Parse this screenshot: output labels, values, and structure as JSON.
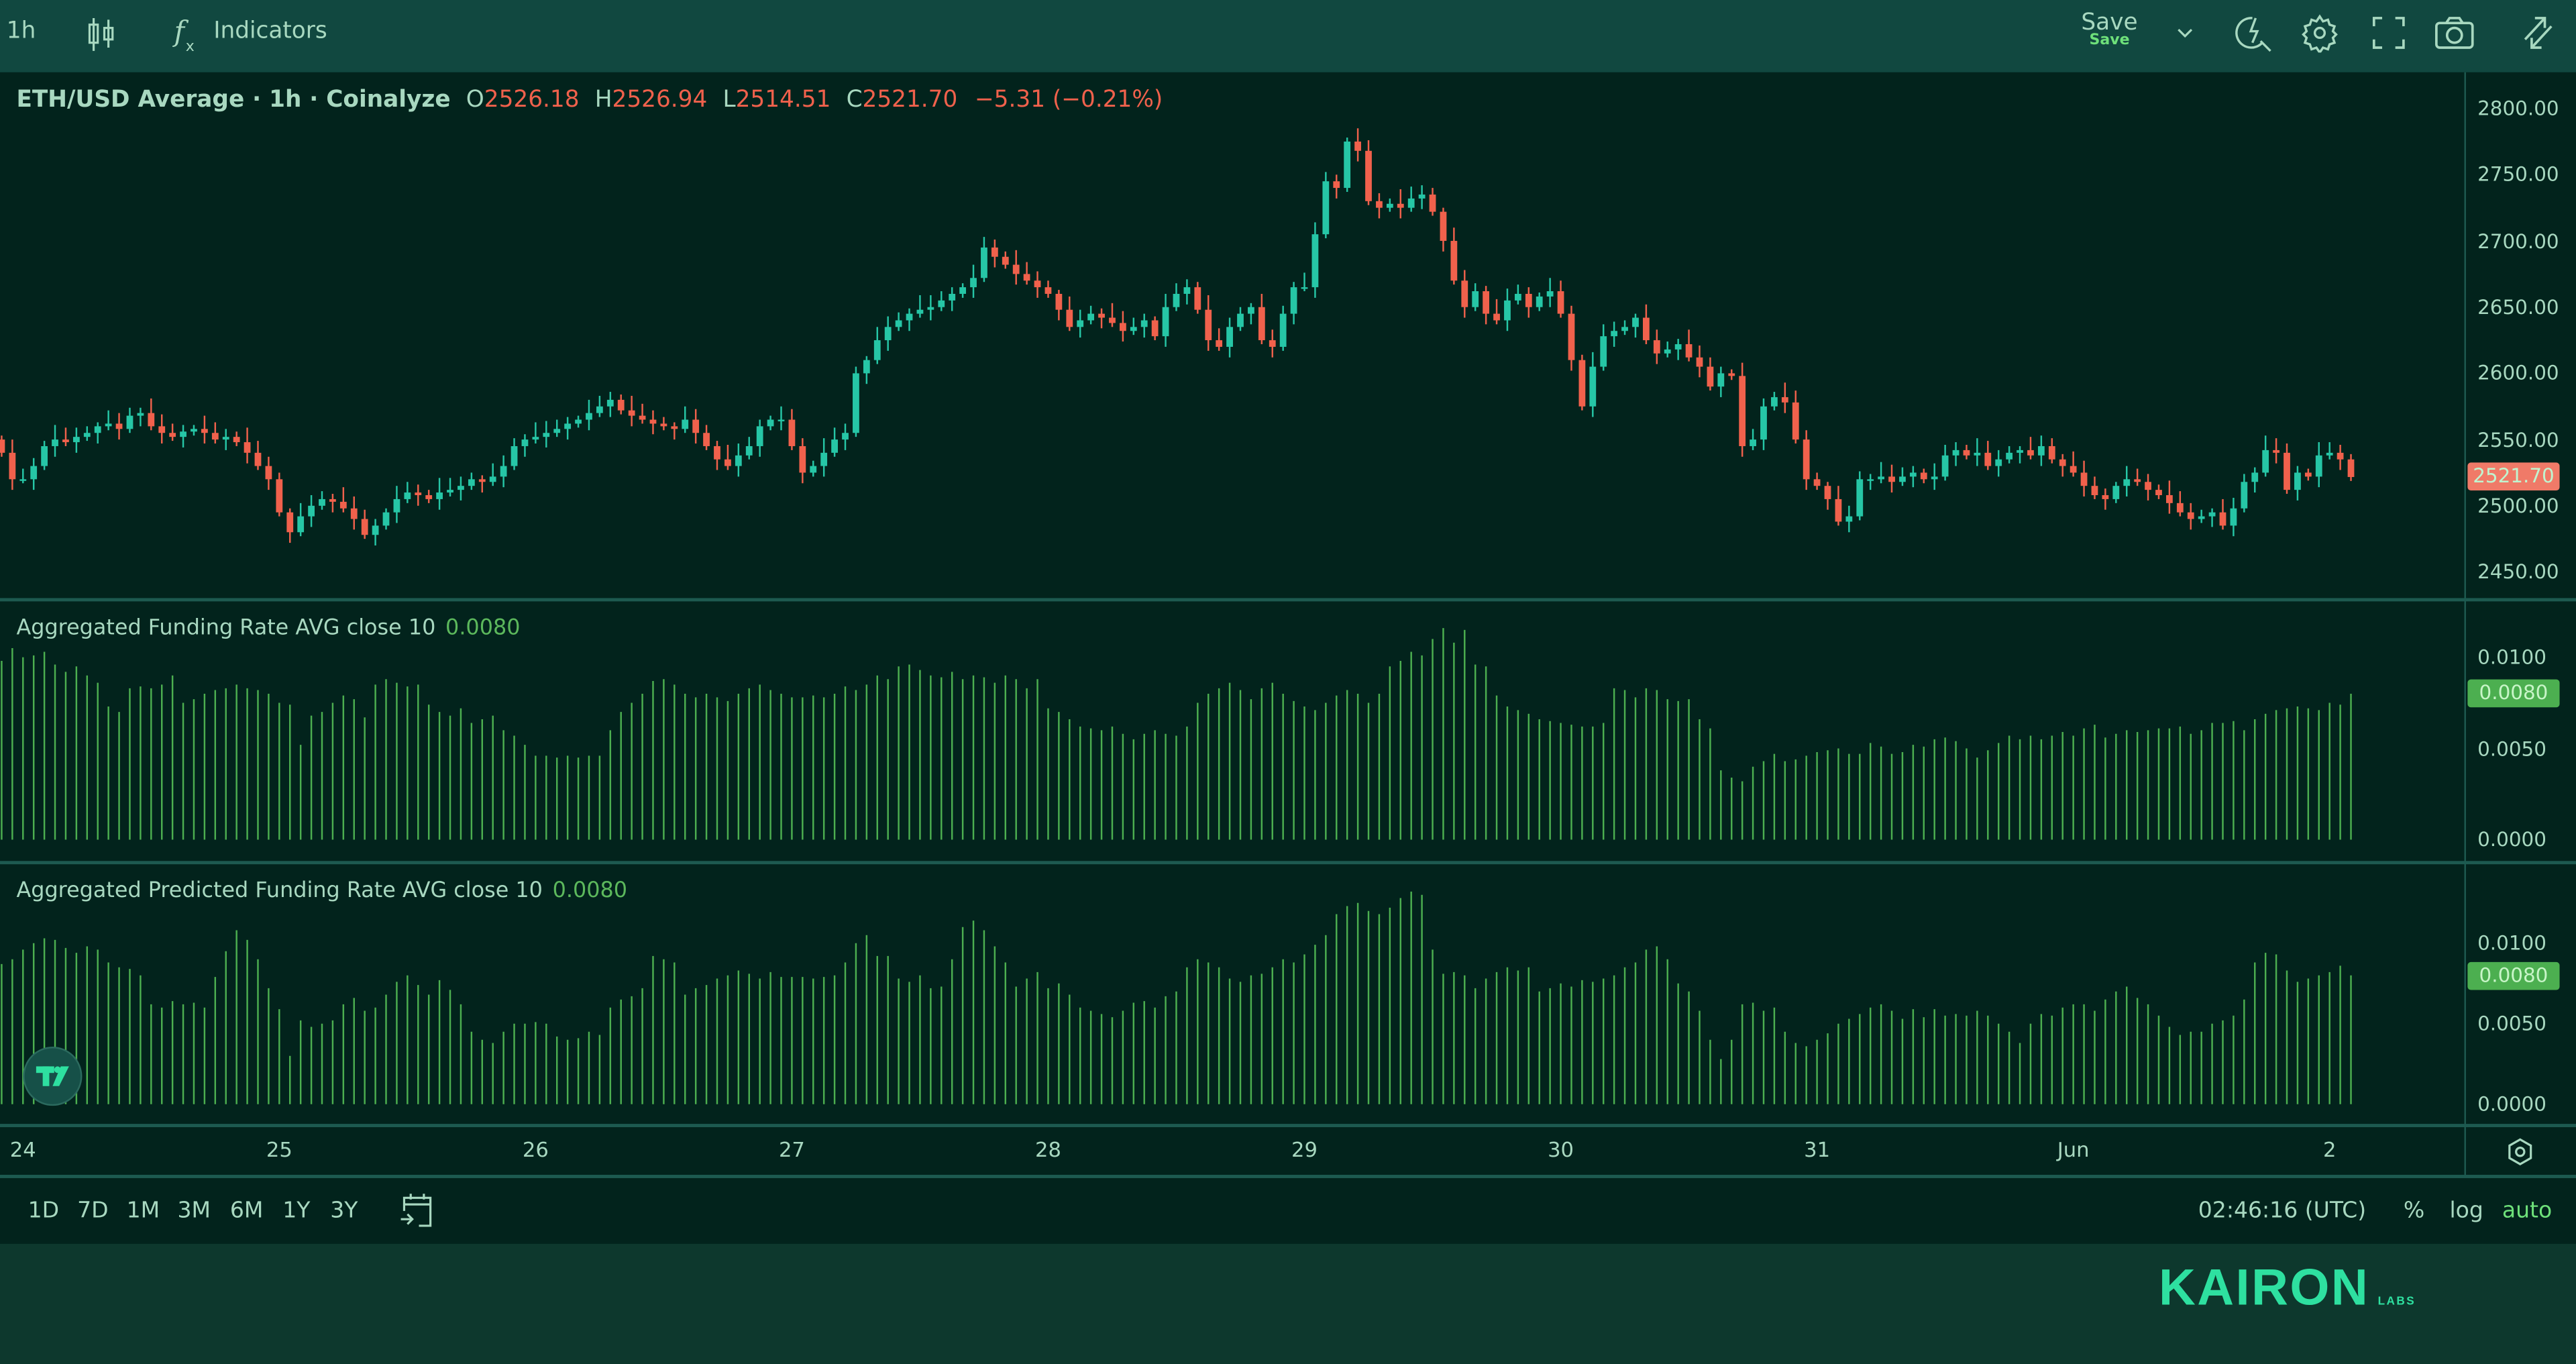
{
  "toolbar": {
    "interval": "1h",
    "indicators_label": "Indicators",
    "save_label": "Save",
    "save_sub_label": "Save",
    "icons": [
      "candles-icon",
      "fx-icon",
      "chevron-down-icon",
      "alert-search-icon",
      "gear-icon",
      "fullscreen-icon",
      "camera-icon",
      "swap-arrows-icon"
    ]
  },
  "legend": {
    "title": "ETH/USD Average · 1h · Coinalyze",
    "o_key": "O",
    "o_val": "2526.18",
    "h_key": "H",
    "h_val": "2526.94",
    "l_key": "L",
    "l_val": "2514.51",
    "c_key": "C",
    "c_val": "2521.70",
    "change": "−5.31 (−0.21%)"
  },
  "colors": {
    "up": "#26c6a6",
    "down": "#f0614c",
    "bar": "#4caf50",
    "accent": "#2ee0a0"
  },
  "chart_data": [
    {
      "type": "candlestick",
      "title": "ETH/USD Average · 1h · Coinalyze",
      "ylim": [
        2430,
        2820
      ],
      "yticks": [
        "2800.00",
        "2750.00",
        "2700.00",
        "2650.00",
        "2600.00",
        "2550.00",
        "2500.00",
        "2450.00"
      ],
      "ytick_values": [
        2800,
        2750,
        2700,
        2650,
        2600,
        2550,
        2500,
        2450
      ],
      "last_price_label": "2521.70",
      "last_price": 2521.7,
      "close": [
        2540,
        2520,
        2520,
        2530,
        2545,
        2550,
        2548,
        2552,
        2555,
        2560,
        2562,
        2558,
        2568,
        2570,
        2560,
        2555,
        2552,
        2556,
        2558,
        2555,
        2550,
        2552,
        2548,
        2540,
        2530,
        2520,
        2495,
        2480,
        2492,
        2500,
        2505,
        2503,
        2498,
        2490,
        2478,
        2485,
        2495,
        2505,
        2510,
        2508,
        2505,
        2510,
        2512,
        2515,
        2520,
        2518,
        2522,
        2530,
        2545,
        2550,
        2552,
        2555,
        2558,
        2562,
        2565,
        2570,
        2575,
        2580,
        2572,
        2568,
        2565,
        2562,
        2560,
        2558,
        2565,
        2555,
        2545,
        2535,
        2530,
        2538,
        2545,
        2560,
        2565,
        2565,
        2545,
        2525,
        2530,
        2540,
        2550,
        2555,
        2600,
        2610,
        2625,
        2635,
        2640,
        2645,
        2648,
        2650,
        2655,
        2660,
        2665,
        2672,
        2695,
        2688,
        2682,
        2675,
        2670,
        2665,
        2660,
        2648,
        2635,
        2640,
        2645,
        2642,
        2638,
        2632,
        2635,
        2640,
        2628,
        2650,
        2660,
        2665,
        2648,
        2625,
        2620,
        2635,
        2645,
        2650,
        2625,
        2620,
        2645,
        2665,
        2665,
        2705,
        2745,
        2740,
        2775,
        2768,
        2730,
        2725,
        2728,
        2725,
        2732,
        2735,
        2722,
        2700,
        2670,
        2650,
        2662,
        2645,
        2640,
        2655,
        2660,
        2650,
        2658,
        2662,
        2645,
        2610,
        2575,
        2605,
        2628,
        2632,
        2635,
        2642,
        2625,
        2615,
        2618,
        2622,
        2612,
        2605,
        2590,
        2600,
        2598,
        2545,
        2550,
        2575,
        2582,
        2578,
        2550,
        2520,
        2515,
        2505,
        2488,
        2492,
        2520,
        2520,
        2522,
        2518,
        2522,
        2525,
        2520,
        2522,
        2538,
        2542,
        2538,
        2540,
        2530,
        2535,
        2540,
        2542,
        2538,
        2545,
        2535,
        2530,
        2525,
        2515,
        2508,
        2505,
        2515,
        2520,
        2518,
        2512,
        2508,
        2502,
        2495,
        2490,
        2492,
        2495,
        2485,
        2498,
        2518,
        2525,
        2542,
        2540,
        2512,
        2525,
        2522,
        2538,
        2540,
        2535,
        2521.7
      ]
    },
    {
      "type": "bar",
      "title": "Aggregated Funding Rate AVG close 10",
      "last_value_label": "0.0080",
      "ylim": [
        0,
        0.0125
      ],
      "yticks": [
        "0.0100",
        "0.0050",
        "0.0000"
      ],
      "ytick_values": [
        0.01,
        0.005,
        0
      ],
      "values": [
        0.0098,
        0.0105,
        0.01,
        0.0101,
        0.0103,
        0.0096,
        0.0092,
        0.0095,
        0.009,
        0.0086,
        0.0073,
        0.007,
        0.0083,
        0.0084,
        0.0083,
        0.0085,
        0.009,
        0.0075,
        0.0077,
        0.008,
        0.0082,
        0.0083,
        0.0085,
        0.0083,
        0.0082,
        0.008,
        0.0075,
        0.0074,
        0.0052,
        0.0068,
        0.007,
        0.0075,
        0.0079,
        0.0077,
        0.0067,
        0.0085,
        0.0088,
        0.0086,
        0.0084,
        0.0085,
        0.0074,
        0.007,
        0.0068,
        0.0072,
        0.0064,
        0.0066,
        0.0068,
        0.006,
        0.0057,
        0.0052,
        0.0046,
        0.0046,
        0.0045,
        0.0046,
        0.0045,
        0.0046,
        0.0046,
        0.006,
        0.007,
        0.0075,
        0.008,
        0.0087,
        0.0088,
        0.0085,
        0.008,
        0.0078,
        0.008,
        0.0078,
        0.0076,
        0.008,
        0.0083,
        0.0085,
        0.0082,
        0.008,
        0.0078,
        0.0078,
        0.0079,
        0.0078,
        0.008,
        0.0084,
        0.0082,
        0.0085,
        0.009,
        0.0088,
        0.0095,
        0.0096,
        0.0093,
        0.009,
        0.0089,
        0.0092,
        0.0088,
        0.009,
        0.0089,
        0.0086,
        0.009,
        0.0088,
        0.0083,
        0.0088,
        0.0072,
        0.007,
        0.0066,
        0.0062,
        0.0061,
        0.006,
        0.0062,
        0.0058,
        0.0055,
        0.0058,
        0.006,
        0.0058,
        0.0057,
        0.0062,
        0.0075,
        0.008,
        0.0083,
        0.0086,
        0.0082,
        0.0077,
        0.0083,
        0.0086,
        0.008,
        0.0076,
        0.0073,
        0.0071,
        0.0075,
        0.0079,
        0.0082,
        0.008,
        0.0075,
        0.008,
        0.0095,
        0.0098,
        0.0103,
        0.0101,
        0.011,
        0.0116,
        0.0108,
        0.0115,
        0.0096,
        0.0095,
        0.0079,
        0.0073,
        0.0071,
        0.0069,
        0.0066,
        0.0065,
        0.0064,
        0.0063,
        0.0062,
        0.0062,
        0.0064,
        0.0083,
        0.0082,
        0.0078,
        0.0083,
        0.0082,
        0.0077,
        0.0076,
        0.0077,
        0.0066,
        0.0061,
        0.0038,
        0.0034,
        0.0032,
        0.004,
        0.0043,
        0.0047,
        0.0043,
        0.0044,
        0.0046,
        0.0048,
        0.0049,
        0.005,
        0.0047,
        0.0047,
        0.0053,
        0.0051,
        0.0047,
        0.0048,
        0.0052,
        0.0051,
        0.0055,
        0.0056,
        0.0054,
        0.005,
        0.0045,
        0.0049,
        0.0053,
        0.0057,
        0.0055,
        0.0057,
        0.0055,
        0.0057,
        0.0059,
        0.0057,
        0.0061,
        0.0063,
        0.0056,
        0.0058,
        0.006,
        0.0059,
        0.006,
        0.0061,
        0.0061,
        0.0062,
        0.0058,
        0.006,
        0.0064,
        0.0064,
        0.0065,
        0.006,
        0.0066,
        0.0069,
        0.0071,
        0.0072,
        0.0073,
        0.0072,
        0.0071,
        0.0075,
        0.0074,
        0.008
      ]
    },
    {
      "type": "bar",
      "title": "Aggregated Predicted Funding Rate AVG close 10",
      "last_value_label": "0.0080",
      "ylim": [
        0,
        0.0145
      ],
      "yticks": [
        "0.0100",
        "0.0050",
        "0.0000"
      ],
      "ytick_values": [
        0.01,
        0.005,
        0
      ],
      "values": [
        0.0087,
        0.009,
        0.0096,
        0.01,
        0.0103,
        0.0102,
        0.0097,
        0.0094,
        0.0098,
        0.0096,
        0.0088,
        0.0085,
        0.0084,
        0.008,
        0.0062,
        0.006,
        0.0064,
        0.0062,
        0.0063,
        0.006,
        0.0079,
        0.0095,
        0.0108,
        0.0102,
        0.009,
        0.0072,
        0.0059,
        0.003,
        0.0052,
        0.0048,
        0.005,
        0.0052,
        0.0062,
        0.0066,
        0.0058,
        0.006,
        0.0068,
        0.0076,
        0.008,
        0.0074,
        0.0068,
        0.0077,
        0.0071,
        0.0062,
        0.0045,
        0.004,
        0.0038,
        0.0045,
        0.005,
        0.005,
        0.0051,
        0.005,
        0.0042,
        0.004,
        0.0041,
        0.0045,
        0.0043,
        0.006,
        0.0065,
        0.0067,
        0.0072,
        0.0092,
        0.009,
        0.0088,
        0.0068,
        0.0072,
        0.0074,
        0.0078,
        0.008,
        0.0083,
        0.0081,
        0.0078,
        0.0082,
        0.0079,
        0.0079,
        0.0079,
        0.0078,
        0.0079,
        0.008,
        0.0088,
        0.01,
        0.0105,
        0.0092,
        0.0092,
        0.0078,
        0.0076,
        0.008,
        0.0072,
        0.0073,
        0.009,
        0.011,
        0.0114,
        0.0108,
        0.0098,
        0.0088,
        0.0073,
        0.0078,
        0.0082,
        0.0072,
        0.0075,
        0.0068,
        0.006,
        0.0058,
        0.0056,
        0.0054,
        0.0058,
        0.0063,
        0.0064,
        0.006,
        0.0067,
        0.007,
        0.0085,
        0.009,
        0.0088,
        0.0085,
        0.0078,
        0.0076,
        0.008,
        0.0081,
        0.0085,
        0.009,
        0.0088,
        0.0093,
        0.0099,
        0.0105,
        0.0118,
        0.0123,
        0.0125,
        0.012,
        0.0118,
        0.0122,
        0.0128,
        0.0132,
        0.013,
        0.0096,
        0.0081,
        0.0082,
        0.008,
        0.0072,
        0.0078,
        0.0082,
        0.0085,
        0.0083,
        0.0085,
        0.007,
        0.0072,
        0.0075,
        0.0073,
        0.0077,
        0.0076,
        0.0078,
        0.008,
        0.0085,
        0.0088,
        0.0096,
        0.0098,
        0.009,
        0.0075,
        0.007,
        0.0058,
        0.004,
        0.0028,
        0.004,
        0.0062,
        0.0063,
        0.0058,
        0.006,
        0.0045,
        0.0038,
        0.0036,
        0.004,
        0.0044,
        0.005,
        0.0053,
        0.0056,
        0.006,
        0.0062,
        0.0058,
        0.0053,
        0.0059,
        0.0054,
        0.0059,
        0.0055,
        0.0056,
        0.0055,
        0.0058,
        0.0055,
        0.005,
        0.0045,
        0.0038,
        0.005,
        0.0056,
        0.0055,
        0.006,
        0.0062,
        0.0062,
        0.0058,
        0.0065,
        0.007,
        0.0073,
        0.0066,
        0.0062,
        0.0055,
        0.0048,
        0.0043,
        0.0045,
        0.0045,
        0.005,
        0.0052,
        0.0055,
        0.0065,
        0.0088,
        0.0094,
        0.0093,
        0.0083,
        0.0076,
        0.0078,
        0.008,
        0.0082,
        0.0086,
        0.008
      ]
    }
  ],
  "time_axis": {
    "labels": [
      "24",
      "25",
      "26",
      "27",
      "28",
      "29",
      "30",
      "31",
      "Jun",
      "2"
    ]
  },
  "bottom_bar": {
    "ranges": [
      "1D",
      "7D",
      "1M",
      "3M",
      "6M",
      "1Y",
      "3Y"
    ],
    "clock": "02:46:16 (UTC)",
    "percent": "%",
    "log": "log",
    "auto": "auto"
  },
  "brand": {
    "name": "KAIRON",
    "sub": "LABS"
  }
}
